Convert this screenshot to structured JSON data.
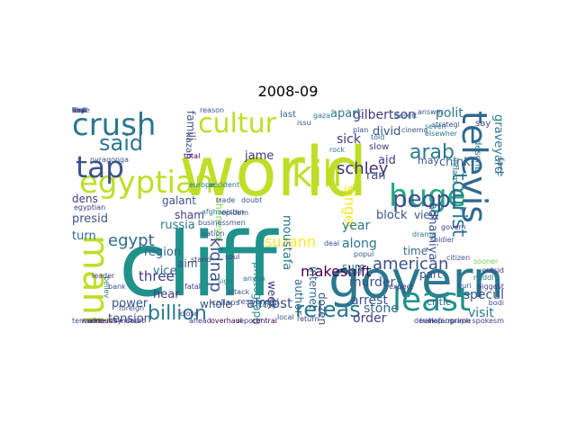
{
  "title": "2008-09",
  "palette": {
    "yellowgreen": "#bddf26",
    "green": "#5ec962",
    "teal": "#21918c",
    "teal2": "#2a788e",
    "blue": "#31688e",
    "blue2": "#3b528b",
    "indigo": "#443983",
    "purple": "#472d7b",
    "dark": "#440154",
    "yellow": "#fde725",
    "lime": "#7ad151",
    "seagreen": "#22a884"
  },
  "words": [
    {
      "text": "world",
      "c": "yellowgreen"
    },
    {
      "text": "cliff",
      "c": "teal"
    },
    {
      "text": "govern",
      "c": "teal2"
    },
    {
      "text": "crush",
      "c": "teal2"
    },
    {
      "text": "cultur",
      "c": "yellowgreen"
    },
    {
      "text": "egyptian",
      "c": "yellowgreen"
    },
    {
      "text": "kill",
      "c": "yellowgreen"
    },
    {
      "text": "tap",
      "c": "blue2"
    },
    {
      "text": "mani",
      "c": "yellowgreen"
    },
    {
      "text": "televis",
      "c": "blue"
    },
    {
      "text": "huge",
      "c": "seagreen"
    },
    {
      "text": "least",
      "c": "teal"
    },
    {
      "text": "peopl",
      "c": "blue2"
    },
    {
      "text": "said",
      "c": "teal2"
    },
    {
      "text": "tourist",
      "c": "teal2"
    },
    {
      "text": "releas",
      "c": "teal2"
    },
    {
      "text": "billion",
      "c": "teal2"
    },
    {
      "text": "arab",
      "c": "teal2"
    },
    {
      "text": "american",
      "c": "blue2"
    },
    {
      "text": "egypt",
      "c": "blue"
    },
    {
      "text": "kidnap",
      "c": "blue2"
    },
    {
      "text": "schley",
      "c": "purple"
    },
    {
      "text": "makeshift",
      "c": "dark"
    },
    {
      "text": "graveyard",
      "c": "teal2"
    },
    {
      "text": "gilbertson",
      "c": "indigo"
    },
    {
      "text": "suzann",
      "c": "yellow"
    },
    {
      "text": "singer",
      "c": "yellow"
    },
    {
      "text": "moustafa",
      "c": "teal2"
    },
    {
      "text": "adhamiya",
      "c": "blue2"
    },
    {
      "text": "three",
      "c": "indigo"
    },
    {
      "text": "region",
      "c": "blue"
    },
    {
      "text": "almost",
      "c": "blue2"
    },
    {
      "text": "arrest",
      "c": "blue2"
    },
    {
      "text": "murder",
      "c": "blue2"
    },
    {
      "text": "order",
      "c": "indigo"
    },
    {
      "text": "stone",
      "c": "blue"
    },
    {
      "text": "visit",
      "c": "teal2"
    },
    {
      "text": "specul",
      "c": "blue2"
    },
    {
      "text": "year",
      "c": "teal2"
    },
    {
      "text": "along",
      "c": "teal2"
    },
    {
      "text": "sick",
      "c": "indigo"
    },
    {
      "text": "aid",
      "c": "indigo"
    },
    {
      "text": "ran",
      "c": "blue2"
    },
    {
      "text": "polit",
      "c": "teal2"
    },
    {
      "text": "apart",
      "c": "teal2"
    },
    {
      "text": "divid",
      "c": "blue2"
    },
    {
      "text": "chink",
      "c": "blue"
    },
    {
      "text": "inflam",
      "c": "teal2"
    },
    {
      "text": "describ",
      "c": "teal2"
    },
    {
      "text": "block",
      "c": "blue2"
    },
    {
      "text": "view",
      "c": "blue2"
    },
    {
      "text": "time",
      "c": "blue"
    },
    {
      "text": "part",
      "c": "blue2"
    },
    {
      "text": "sure",
      "c": "teal2"
    },
    {
      "text": "dozen",
      "c": "blue2"
    },
    {
      "text": "week",
      "c": "indigo"
    },
    {
      "text": "author",
      "c": "blue"
    },
    {
      "text": "internet",
      "c": "blue"
    },
    {
      "text": "photograph",
      "c": "teal"
    },
    {
      "text": "tension",
      "c": "blue2"
    },
    {
      "text": "power",
      "c": "blue2"
    },
    {
      "text": "hear",
      "c": "indigo"
    },
    {
      "text": "vice",
      "c": "blue"
    },
    {
      "text": "aim",
      "c": "blue2"
    },
    {
      "text": "whole",
      "c": "blue2"
    },
    {
      "text": "sham",
      "c": "indigo"
    },
    {
      "text": "galant",
      "c": "blue2"
    },
    {
      "text": "russia",
      "c": "teal2"
    },
    {
      "text": "presid",
      "c": "blue2"
    },
    {
      "text": "dens",
      "c": "indigo"
    },
    {
      "text": "turn",
      "c": "blue"
    },
    {
      "text": "jame",
      "c": "indigo"
    },
    {
      "text": "kazan",
      "c": "blue2"
    },
    {
      "text": "famili",
      "c": "blue2"
    },
    {
      "text": "sheneya",
      "c": "lime"
    },
    {
      "text": "last",
      "c": "blue"
    },
    {
      "text": "critic",
      "c": "blue"
    },
    {
      "text": "face",
      "c": "blue"
    },
    {
      "text": "may",
      "c": "blue2"
    },
    {
      "text": "say",
      "c": "blue2"
    },
    {
      "text": "slow",
      "c": "indigo"
    },
    {
      "text": "responsibl",
      "c": "blue2"
    },
    {
      "text": "collaps",
      "c": "blue2"
    },
    {
      "text": "cairo",
      "c": "teal2"
    },
    {
      "text": "attack",
      "c": "blue2"
    },
    {
      "text": "middl",
      "c": "teal2"
    },
    {
      "text": "told",
      "c": "blue"
    },
    {
      "text": "seven",
      "c": "teal2"
    },
    {
      "text": "answer",
      "c": "blue2"
    },
    {
      "text": "elsewher",
      "c": "teal2"
    },
    {
      "text": "buri",
      "c": "blue2"
    },
    {
      "text": "transform",
      "c": "blue2"
    },
    {
      "text": "choreograph",
      "c": "blue2"
    },
    {
      "text": "believ",
      "c": "teal2"
    },
    {
      "text": "reason",
      "c": "blue2"
    },
    {
      "text": "total",
      "c": "dark"
    },
    {
      "text": "amount",
      "c": "dark"
    },
    {
      "text": "court",
      "c": "indigo"
    },
    {
      "text": "report",
      "c": "indigo"
    },
    {
      "text": "central",
      "c": "dark"
    },
    {
      "text": "overhaul",
      "c": "dark"
    },
    {
      "text": "egyptian",
      "c": "indigo"
    },
    {
      "text": "nyragonga",
      "c": "blue2"
    },
    {
      "text": "minut",
      "c": "indigo"
    },
    {
      "text": "develop",
      "c": "indigo"
    },
    {
      "text": "expect",
      "c": "indigo"
    },
    {
      "text": "wednesday",
      "c": "indigo"
    },
    {
      "text": "terrorist",
      "c": "blue2"
    },
    {
      "text": "prime",
      "c": "indigo"
    },
    {
      "text": "leader",
      "c": "indigo"
    },
    {
      "text": "bank",
      "c": "blue2"
    },
    {
      "text": "foreign",
      "c": "blue2"
    },
    {
      "text": "europe",
      "c": "teal2"
    },
    {
      "text": "accident",
      "c": "teal2"
    },
    {
      "text": "fatal",
      "c": "indigo"
    },
    {
      "text": "stand",
      "c": "indigo"
    },
    {
      "text": "sign",
      "c": "teal2"
    },
    {
      "text": "soul",
      "c": "indigo"
    },
    {
      "text": "anyon",
      "c": "teal2"
    },
    {
      "text": "close",
      "c": "indigo"
    },
    {
      "text": "ahead",
      "c": "indigo"
    },
    {
      "text": "local",
      "c": "blue2"
    },
    {
      "text": "return",
      "c": "indigo"
    },
    {
      "text": "gaza",
      "c": "teal2"
    },
    {
      "text": "issu",
      "c": "blue2"
    },
    {
      "text": "plan",
      "c": "blue2"
    },
    {
      "text": "rock",
      "c": "teal2"
    },
    {
      "text": "deal",
      "c": "blue2"
    },
    {
      "text": "mine",
      "c": "blue2"
    },
    {
      "text": "popul",
      "c": "blue2"
    },
    {
      "text": "drama",
      "c": "teal2"
    },
    {
      "text": "soldier",
      "c": "blue2"
    },
    {
      "text": "govern",
      "c": "indigo"
    },
    {
      "text": "citizen",
      "c": "blue2"
    },
    {
      "text": "sooner",
      "c": "lime"
    },
    {
      "text": "outsid",
      "c": "indigo"
    },
    {
      "text": "biggest",
      "c": "indigo"
    },
    {
      "text": "bodi",
      "c": "blue2"
    },
    {
      "text": "spokesm",
      "c": "indigo"
    },
    {
      "text": "strategi",
      "c": "blue2"
    },
    {
      "text": "cinema",
      "c": "blue2"
    },
    {
      "text": "desert",
      "c": "teal2"
    },
    {
      "text": "nation",
      "c": "blue2"
    },
    {
      "text": "businessmen",
      "c": "blue2"
    },
    {
      "text": "afghanistan",
      "c": "teal2"
    },
    {
      "text": "epidem",
      "c": "indigo"
    },
    {
      "text": "trade",
      "c": "blue2"
    },
    {
      "text": "doubt",
      "c": "blue2"
    },
    {
      "text": "fear",
      "c": "blue2"
    },
    {
      "text": "kind",
      "c": "blue2"
    },
    {
      "text": "lost",
      "c": "teal2"
    },
    {
      "text": "hope",
      "c": "blue2"
    },
    {
      "text": "end",
      "c": "indigo"
    },
    {
      "text": "due",
      "c": "blue2"
    },
    {
      "text": "new",
      "c": "blue2"
    },
    {
      "text": "day",
      "c": "indigo"
    }
  ]
}
